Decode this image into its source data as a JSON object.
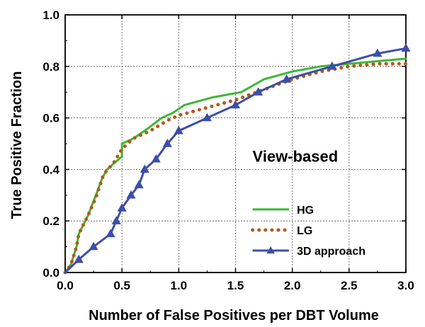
{
  "chart_data": {
    "type": "line",
    "xlabel": "Number of False Positives per DBT Volume",
    "ylabel": "True Positive Fraction",
    "xlim": [
      0.0,
      3.0
    ],
    "ylim": [
      0.0,
      1.0
    ],
    "x_ticks": [
      "0.0",
      "0.5",
      "1.0",
      "1.5",
      "2.0",
      "2.5",
      "3.0"
    ],
    "y_ticks": [
      "0.0",
      "0.2",
      "0.4",
      "0.6",
      "0.8",
      "1.0"
    ],
    "grid": true,
    "legend_position": "bottom-right",
    "annotation": "View-based",
    "series": [
      {
        "name": "HG",
        "color": "#3cb832",
        "style": "solid",
        "marker": "none",
        "points": [
          [
            0.0,
            0.0
          ],
          [
            0.05,
            0.03
          ],
          [
            0.1,
            0.1
          ],
          [
            0.12,
            0.15
          ],
          [
            0.2,
            0.22
          ],
          [
            0.27,
            0.3
          ],
          [
            0.33,
            0.37
          ],
          [
            0.37,
            0.4
          ],
          [
            0.42,
            0.42
          ],
          [
            0.5,
            0.45
          ],
          [
            0.5,
            0.5
          ],
          [
            0.6,
            0.52
          ],
          [
            0.7,
            0.55
          ],
          [
            0.85,
            0.6
          ],
          [
            0.95,
            0.62
          ],
          [
            1.05,
            0.65
          ],
          [
            1.3,
            0.68
          ],
          [
            1.55,
            0.7
          ],
          [
            1.75,
            0.75
          ],
          [
            2.0,
            0.78
          ],
          [
            2.25,
            0.8
          ],
          [
            2.5,
            0.81
          ],
          [
            2.75,
            0.82
          ],
          [
            3.0,
            0.83
          ]
        ]
      },
      {
        "name": "LG",
        "color": "#b05a1e",
        "style": "dotted",
        "marker": "none",
        "points": [
          [
            0.0,
            0.0
          ],
          [
            0.05,
            0.03
          ],
          [
            0.1,
            0.1
          ],
          [
            0.12,
            0.15
          ],
          [
            0.2,
            0.22
          ],
          [
            0.27,
            0.29
          ],
          [
            0.33,
            0.37
          ],
          [
            0.37,
            0.4
          ],
          [
            0.42,
            0.42
          ],
          [
            0.5,
            0.48
          ],
          [
            0.6,
            0.52
          ],
          [
            0.75,
            0.55
          ],
          [
            0.9,
            0.59
          ],
          [
            1.0,
            0.61
          ],
          [
            1.25,
            0.64
          ],
          [
            1.5,
            0.67
          ],
          [
            1.75,
            0.71
          ],
          [
            2.0,
            0.75
          ],
          [
            2.25,
            0.78
          ],
          [
            2.5,
            0.8
          ],
          [
            2.75,
            0.81
          ],
          [
            3.0,
            0.81
          ]
        ]
      },
      {
        "name": "3D approach",
        "color": "#3c4fa8",
        "style": "solid",
        "marker": "triangle",
        "points": [
          [
            0.0,
            0.0
          ],
          [
            0.12,
            0.05
          ],
          [
            0.25,
            0.1
          ],
          [
            0.4,
            0.15
          ],
          [
            0.45,
            0.2
          ],
          [
            0.5,
            0.25
          ],
          [
            0.58,
            0.3
          ],
          [
            0.65,
            0.34
          ],
          [
            0.7,
            0.4
          ],
          [
            0.8,
            0.44
          ],
          [
            0.9,
            0.5
          ],
          [
            1.0,
            0.55
          ],
          [
            1.25,
            0.6
          ],
          [
            1.5,
            0.65
          ],
          [
            1.7,
            0.7
          ],
          [
            1.95,
            0.75
          ],
          [
            2.35,
            0.8
          ],
          [
            2.75,
            0.85
          ],
          [
            3.0,
            0.87
          ]
        ]
      }
    ]
  }
}
